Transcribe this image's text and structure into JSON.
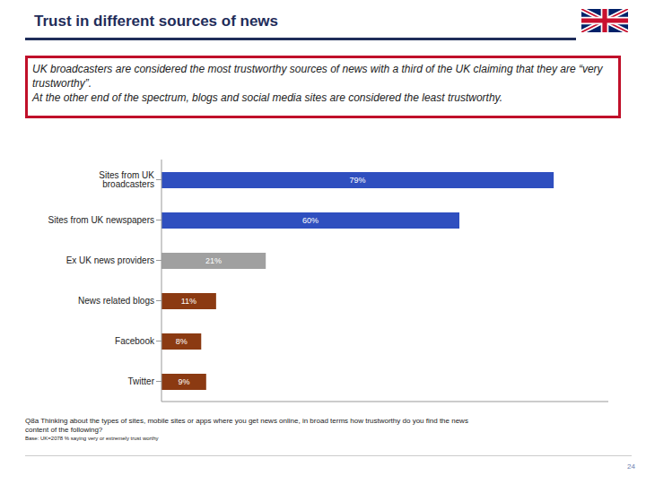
{
  "title": "Trust in different sources of news",
  "summary": [
    "UK broadcasters are considered the most trustworthy sources of news with a third of the UK claiming that they are “very trustworthy”.",
    "At the other end of the spectrum, blogs and social media sites are considered the least trustworthy."
  ],
  "chart_data": {
    "type": "bar",
    "orientation": "horizontal",
    "categories": [
      "Sites from UK broadcasters",
      "Sites from UK newspapers",
      "Ex UK news providers",
      "News related blogs",
      "Facebook",
      "Twitter"
    ],
    "values": [
      79,
      60,
      21,
      11,
      8,
      9
    ],
    "value_labels": [
      "79%",
      "60%",
      "21%",
      "11%",
      "8%",
      "9%"
    ],
    "colors": [
      "#2f4fbf",
      "#2f4fbf",
      "#a0a0a0",
      "#8b3a12",
      "#8b3a12",
      "#8b3a12"
    ],
    "xlim": [
      0,
      90
    ],
    "data_labels": true,
    "tick_labels": "y",
    "grid": false
  },
  "footnote": {
    "question": "Q8a Thinking about the types of sites, mobile sites or apps where you get news online, in broad terms how trustworthy do you find the news content of the following?",
    "base": "Base: UK=2078 % saying very or extremely trust worthy"
  },
  "page": "24"
}
